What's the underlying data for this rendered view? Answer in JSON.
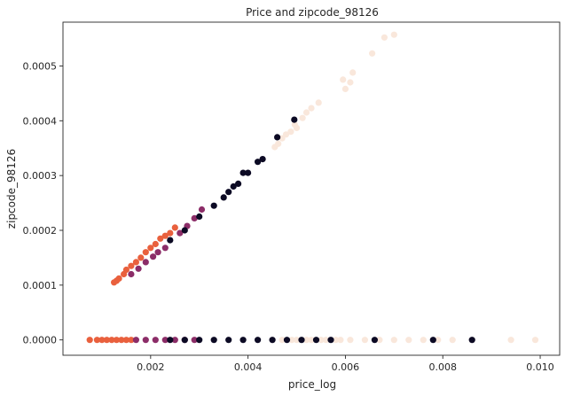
{
  "chart_data": {
    "type": "scatter",
    "title": "Price and zipcode_98126",
    "xlabel": "price_log",
    "ylabel": "zipcode_98126",
    "xlim": [
      0.0002,
      0.0104
    ],
    "ylim": [
      -2.8e-05,
      0.00058
    ],
    "xticks": [
      {
        "value": 0.002,
        "label": "0.002"
      },
      {
        "value": 0.004,
        "label": "0.004"
      },
      {
        "value": 0.006,
        "label": "0.006"
      },
      {
        "value": 0.008,
        "label": "0.008"
      },
      {
        "value": 0.01,
        "label": "0.010"
      }
    ],
    "yticks": [
      {
        "value": 0.0,
        "label": "0.0000"
      },
      {
        "value": 0.0001,
        "label": "0.0001"
      },
      {
        "value": 0.0002,
        "label": "0.0002"
      },
      {
        "value": 0.0003,
        "label": "0.0003"
      },
      {
        "value": 0.0004,
        "label": "0.0004"
      },
      {
        "value": 0.0005,
        "label": "0.0005"
      }
    ],
    "grid": false,
    "colors": {
      "orange": "#e9603d",
      "magenta": "#8c2d68",
      "black": "#0c0a24",
      "cream": "#f9e7db"
    },
    "series": [
      {
        "color": "cream",
        "x": [
          0.0049,
          0.0052,
          0.0055,
          0.0058,
          0.0061,
          0.0064,
          0.0067,
          0.007,
          0.0073,
          0.0076,
          0.0079,
          0.0082,
          0.0086,
          0.0094,
          0.0099,
          0.0045,
          0.0047,
          0.005,
          0.0053,
          0.0056,
          0.0059
        ],
        "y": [
          0.0,
          0.0,
          0.0,
          0.0,
          0.0,
          0.0,
          0.0,
          0.0,
          0.0,
          0.0,
          0.0,
          0.0,
          0.0,
          0.0,
          0.0,
          0.0,
          0.0,
          0.0,
          0.0,
          0.0,
          0.0
        ]
      },
      {
        "color": "cream",
        "x": [
          0.00455,
          0.00462,
          0.0047,
          0.00478,
          0.00488,
          0.00496,
          0.005,
          0.00512,
          0.0052,
          0.0053,
          0.00545,
          0.00595,
          0.006,
          0.0061,
          0.00615,
          0.00655,
          0.0068,
          0.007
        ],
        "y": [
          0.000352,
          0.000358,
          0.000368,
          0.000375,
          0.00038,
          0.000393,
          0.000387,
          0.000405,
          0.000415,
          0.000423,
          0.000433,
          0.000475,
          0.000458,
          0.00047,
          0.000488,
          0.000523,
          0.000552,
          0.000557
        ]
      },
      {
        "color": "orange",
        "x": [
          0.00075,
          0.0009,
          0.001,
          0.0011,
          0.0012,
          0.0013,
          0.0014,
          0.0015,
          0.0016,
          0.00125,
          0.0013,
          0.00135,
          0.00145,
          0.0015,
          0.0016,
          0.0017,
          0.0018,
          0.0019,
          0.002,
          0.0021,
          0.0022,
          0.0023,
          0.0024,
          0.0025
        ],
        "y": [
          0.0,
          0.0,
          0.0,
          0.0,
          0.0,
          0.0,
          0.0,
          0.0,
          0.0,
          0.000105,
          0.000108,
          0.000112,
          0.00012,
          0.000128,
          0.000135,
          0.000142,
          0.00015,
          0.00016,
          0.000168,
          0.000175,
          0.000185,
          0.00019,
          0.000195,
          0.000205
        ]
      },
      {
        "color": "magenta",
        "x": [
          0.0017,
          0.0019,
          0.0021,
          0.0023,
          0.0025,
          0.0027,
          0.0029,
          0.0016,
          0.00175,
          0.0019,
          0.00205,
          0.00215,
          0.0023,
          0.0026,
          0.00275,
          0.0029,
          0.00305
        ],
        "y": [
          0.0,
          0.0,
          0.0,
          0.0,
          0.0,
          0.0,
          0.0,
          0.00012,
          0.00013,
          0.000142,
          0.000152,
          0.00016,
          0.000168,
          0.000195,
          0.000208,
          0.000222,
          0.000238
        ]
      },
      {
        "color": "black",
        "x": [
          0.0024,
          0.0027,
          0.003,
          0.0033,
          0.0036,
          0.0039,
          0.0042,
          0.0045,
          0.0048,
          0.0051,
          0.0054,
          0.0057,
          0.0066,
          0.0078,
          0.0086,
          0.0024,
          0.0027,
          0.003,
          0.0033,
          0.0035,
          0.0036,
          0.0037,
          0.0038,
          0.0039,
          0.004,
          0.0042,
          0.0043,
          0.0046,
          0.00495
        ],
        "y": [
          0.0,
          0.0,
          0.0,
          0.0,
          0.0,
          0.0,
          0.0,
          0.0,
          0.0,
          0.0,
          0.0,
          0.0,
          0.0,
          0.0,
          0.0,
          0.000182,
          0.0002,
          0.000225,
          0.000245,
          0.00026,
          0.00027,
          0.00028,
          0.000285,
          0.000305,
          0.000305,
          0.000325,
          0.00033,
          0.00037,
          0.000402
        ]
      }
    ]
  }
}
